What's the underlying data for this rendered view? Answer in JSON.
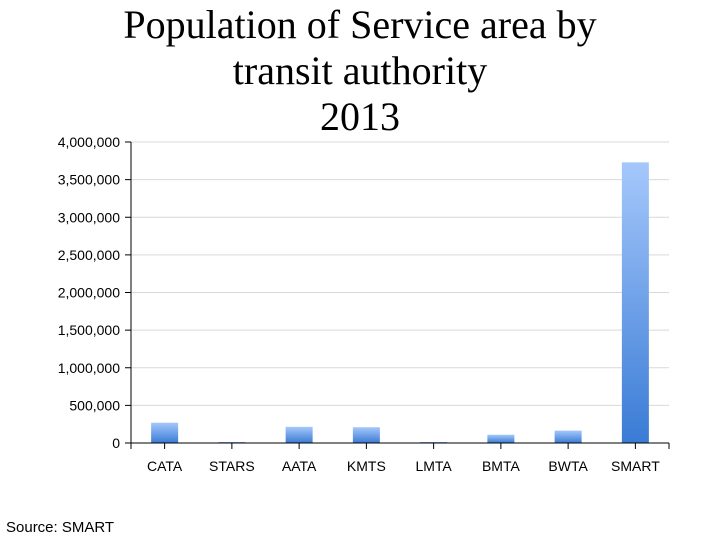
{
  "title_lines": [
    "Population of Service area by",
    "transit authority",
    "2013"
  ],
  "source": "Source: SMART",
  "chart_data": {
    "type": "bar",
    "title": "Population of Service area by transit authority 2013",
    "categories": [
      "CATA",
      "STARS",
      "AATA",
      "KMTS",
      "LMTA",
      "BMTA",
      "BWTA",
      "SMART"
    ],
    "series": [
      {
        "values": [
          270000,
          10000,
          215000,
          210000,
          8000,
          110000,
          165000,
          3730000
        ]
      }
    ],
    "ylim": [
      0,
      4000000
    ],
    "yticks": [
      0,
      500000,
      1000000,
      1500000,
      2000000,
      2500000,
      3000000,
      3500000,
      4000000
    ],
    "ytick_labels": [
      "0",
      "500,000",
      "1,000,000",
      "1,500,000",
      "2,000,000",
      "2,500,000",
      "3,000,000",
      "3,500,000",
      "4,000,000"
    ],
    "grid": true,
    "legend": false,
    "colors": {
      "bar_top": "#a5c8fb",
      "bar_bottom": "#3a7bd5",
      "grid": "#d9d9d9",
      "axis": "#000000"
    }
  }
}
